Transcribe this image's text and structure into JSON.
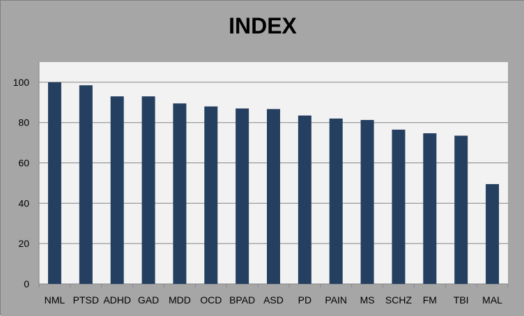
{
  "colors": {
    "background": "#a6a6a6",
    "plot_area": "#f2f2f2",
    "bar": "#243f60",
    "gridline": "#868686"
  },
  "chart_data": {
    "type": "bar",
    "title": "INDEX",
    "xlabel": "",
    "ylabel": "",
    "categories": [
      "NML",
      "PTSD",
      "ADHD",
      "GAD",
      "MDD",
      "OCD",
      "BPAD",
      "ASD",
      "PD",
      "PAIN",
      "MS",
      "SCHZ",
      "FM",
      "TBI",
      "MAL"
    ],
    "values": [
      100,
      98.5,
      93,
      93,
      89.5,
      88,
      87,
      86.7,
      83.5,
      82,
      81.3,
      76.5,
      74.7,
      73.5,
      49.5
    ],
    "ylim": [
      0,
      110
    ],
    "yticks": [
      0,
      20,
      40,
      60,
      80,
      100
    ],
    "grid": true,
    "legend": "none"
  }
}
